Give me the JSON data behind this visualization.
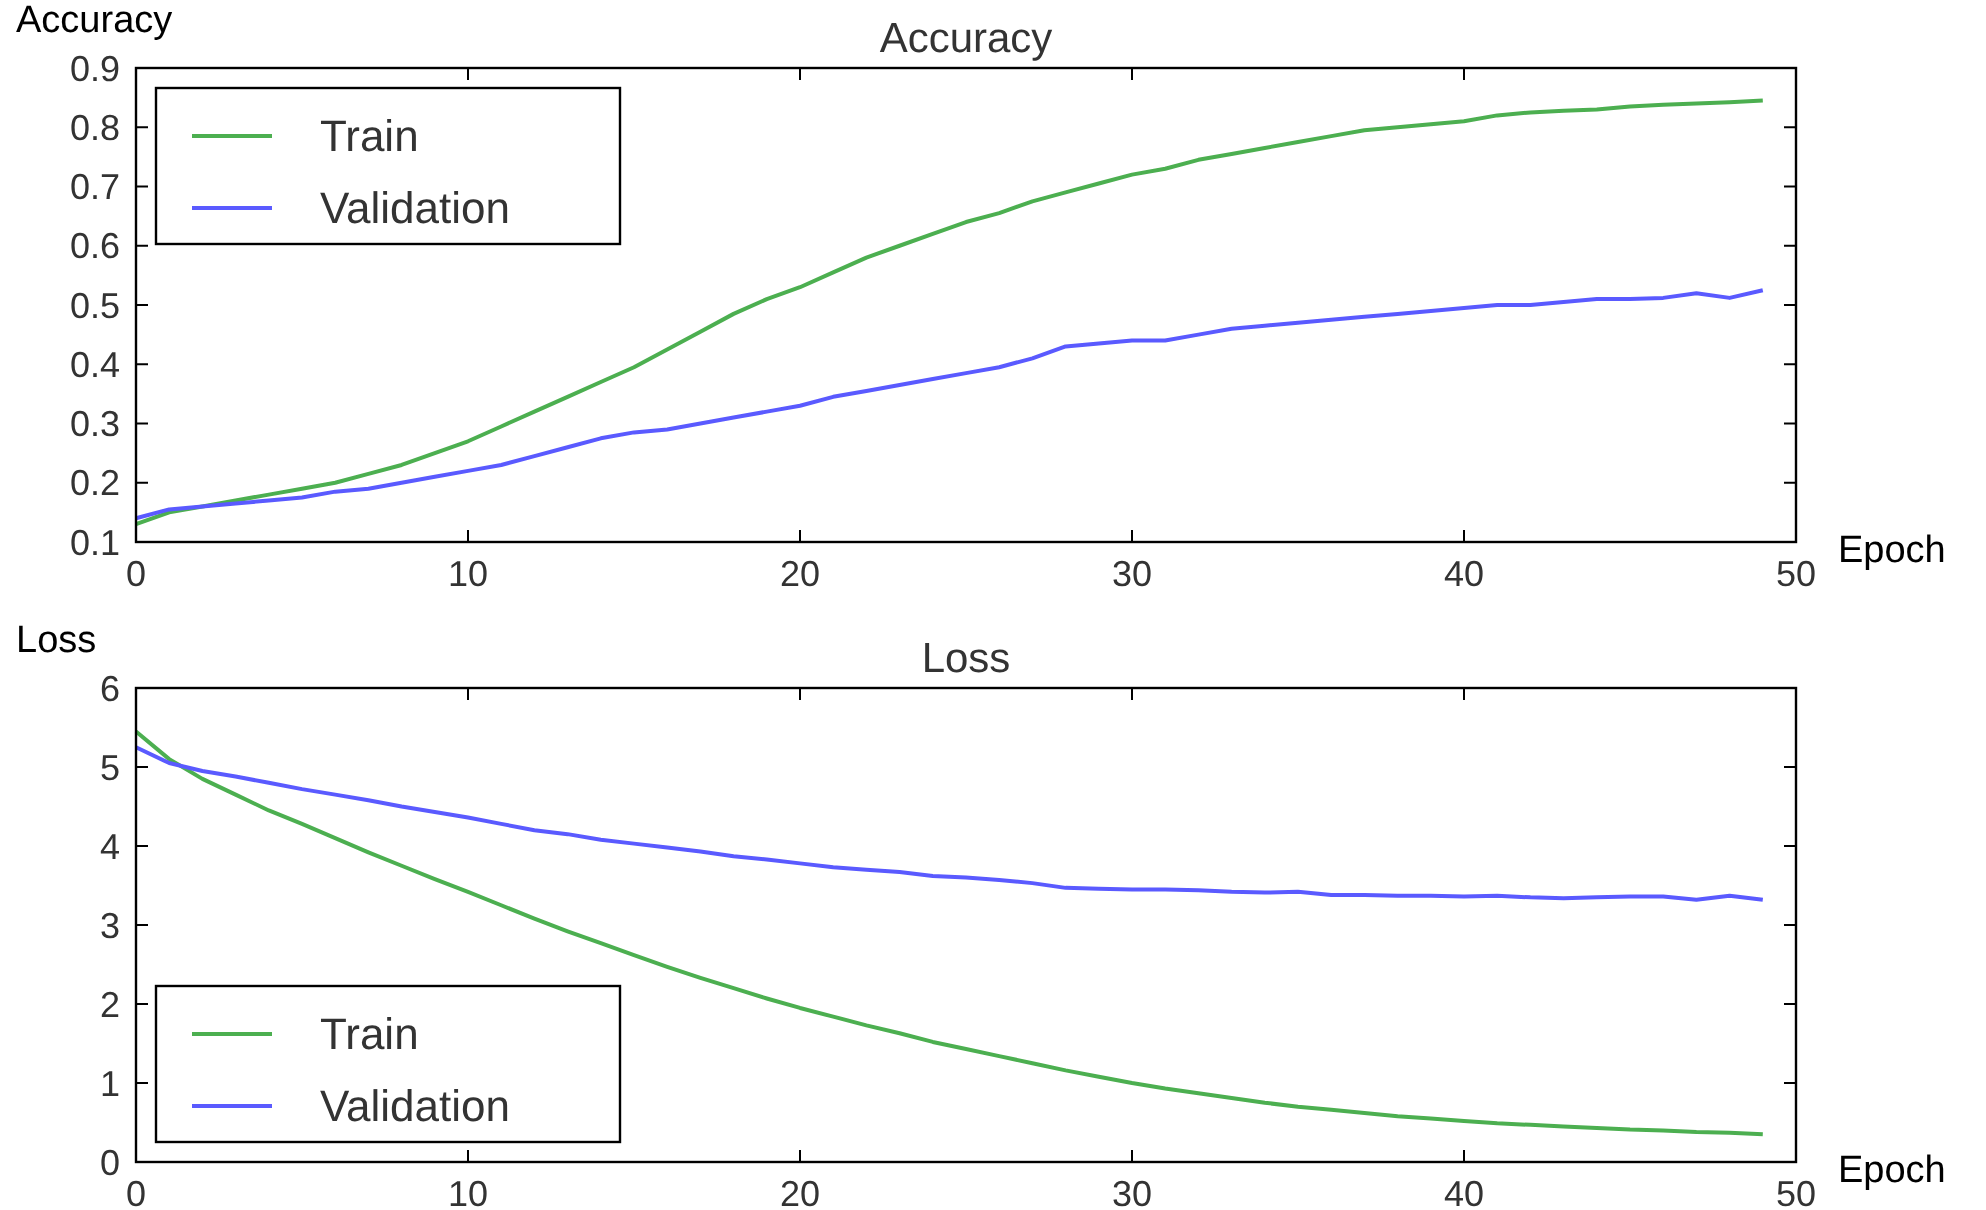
{
  "chart_data": [
    {
      "type": "line",
      "title": "Accuracy",
      "xlabel": "Epoch",
      "ylabel": "Accuracy",
      "x": [
        0,
        1,
        2,
        3,
        4,
        5,
        6,
        7,
        8,
        9,
        10,
        11,
        12,
        13,
        14,
        15,
        16,
        17,
        18,
        19,
        20,
        21,
        22,
        23,
        24,
        25,
        26,
        27,
        28,
        29,
        30,
        31,
        32,
        33,
        34,
        35,
        36,
        37,
        38,
        39,
        40,
        41,
        42,
        43,
        44,
        45,
        46,
        47,
        48,
        49
      ],
      "xlim": [
        0,
        50
      ],
      "xticks": [
        0,
        10,
        20,
        30,
        40,
        50
      ],
      "ylim": [
        0.1,
        0.9
      ],
      "yticks": [
        0.1,
        0.2,
        0.3,
        0.4,
        0.5,
        0.6,
        0.7,
        0.8,
        0.9
      ],
      "grid": false,
      "legend": "top left",
      "series": [
        {
          "name": "Train",
          "color": "#4caf50",
          "values": [
            0.13,
            0.15,
            0.16,
            0.17,
            0.18,
            0.19,
            0.2,
            0.215,
            0.23,
            0.25,
            0.27,
            0.295,
            0.32,
            0.345,
            0.37,
            0.395,
            0.425,
            0.455,
            0.485,
            0.51,
            0.53,
            0.555,
            0.58,
            0.6,
            0.62,
            0.64,
            0.655,
            0.675,
            0.69,
            0.705,
            0.72,
            0.73,
            0.745,
            0.755,
            0.765,
            0.775,
            0.785,
            0.795,
            0.8,
            0.805,
            0.81,
            0.82,
            0.825,
            0.828,
            0.83,
            0.835,
            0.838,
            0.84,
            0.842,
            0.845
          ]
        },
        {
          "name": "Validation",
          "color": "#5a5aff",
          "values": [
            0.14,
            0.155,
            0.16,
            0.165,
            0.17,
            0.175,
            0.185,
            0.19,
            0.2,
            0.21,
            0.22,
            0.23,
            0.245,
            0.26,
            0.275,
            0.285,
            0.29,
            0.3,
            0.31,
            0.32,
            0.33,
            0.345,
            0.355,
            0.365,
            0.375,
            0.385,
            0.395,
            0.41,
            0.43,
            0.435,
            0.44,
            0.44,
            0.45,
            0.46,
            0.465,
            0.47,
            0.475,
            0.48,
            0.485,
            0.49,
            0.495,
            0.5,
            0.5,
            0.505,
            0.51,
            0.51,
            0.512,
            0.52,
            0.512,
            0.525
          ]
        }
      ]
    },
    {
      "type": "line",
      "title": "Loss",
      "xlabel": "Epoch",
      "ylabel": "Loss",
      "x": [
        0,
        1,
        2,
        3,
        4,
        5,
        6,
        7,
        8,
        9,
        10,
        11,
        12,
        13,
        14,
        15,
        16,
        17,
        18,
        19,
        20,
        21,
        22,
        23,
        24,
        25,
        26,
        27,
        28,
        29,
        30,
        31,
        32,
        33,
        34,
        35,
        36,
        37,
        38,
        39,
        40,
        41,
        42,
        43,
        44,
        45,
        46,
        47,
        48,
        49
      ],
      "xlim": [
        0,
        50
      ],
      "xticks": [
        0,
        10,
        20,
        30,
        40,
        50
      ],
      "ylim": [
        0,
        6
      ],
      "yticks": [
        0,
        1,
        2,
        3,
        4,
        5,
        6
      ],
      "grid": false,
      "legend": "bottom left",
      "series": [
        {
          "name": "Train",
          "color": "#4caf50",
          "values": [
            5.45,
            5.1,
            4.85,
            4.65,
            4.45,
            4.28,
            4.1,
            3.92,
            3.75,
            3.58,
            3.42,
            3.25,
            3.08,
            2.92,
            2.77,
            2.62,
            2.47,
            2.33,
            2.2,
            2.07,
            1.95,
            1.84,
            1.73,
            1.63,
            1.52,
            1.43,
            1.34,
            1.25,
            1.16,
            1.08,
            1.0,
            0.93,
            0.87,
            0.81,
            0.75,
            0.7,
            0.66,
            0.62,
            0.58,
            0.55,
            0.52,
            0.49,
            0.47,
            0.45,
            0.43,
            0.41,
            0.4,
            0.38,
            0.37,
            0.35
          ]
        },
        {
          "name": "Validation",
          "color": "#5a5aff",
          "values": [
            5.25,
            5.05,
            4.95,
            4.88,
            4.8,
            4.72,
            4.65,
            4.58,
            4.5,
            4.43,
            4.36,
            4.28,
            4.2,
            4.15,
            4.08,
            4.03,
            3.98,
            3.93,
            3.87,
            3.83,
            3.78,
            3.73,
            3.7,
            3.67,
            3.62,
            3.6,
            3.57,
            3.53,
            3.47,
            3.46,
            3.45,
            3.45,
            3.44,
            3.42,
            3.41,
            3.42,
            3.38,
            3.38,
            3.37,
            3.37,
            3.36,
            3.37,
            3.35,
            3.34,
            3.35,
            3.36,
            3.36,
            3.32,
            3.37,
            3.32
          ]
        }
      ]
    }
  ]
}
